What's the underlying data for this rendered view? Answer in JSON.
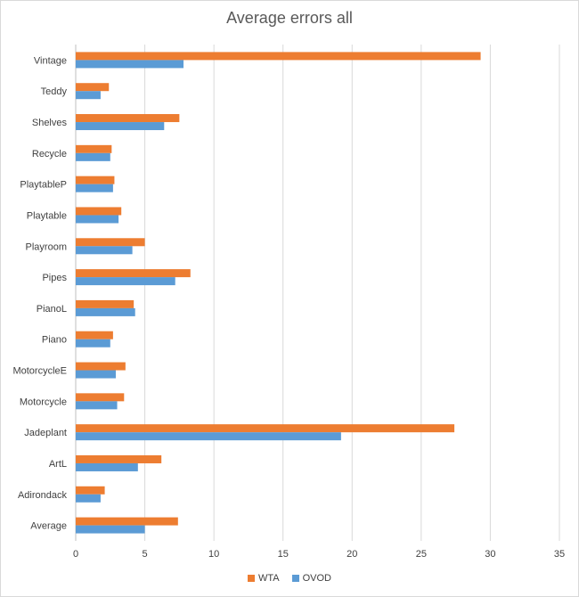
{
  "chart_data": {
    "type": "bar",
    "orientation": "horizontal",
    "title": "Average errors all",
    "categories": [
      "Vintage",
      "Teddy",
      "Shelves",
      "Recycle",
      "PlaytableP",
      "Playtable",
      "Playroom",
      "Pipes",
      "PianoL",
      "Piano",
      "MotorcycleE",
      "Motorcycle",
      "Jadeplant",
      "ArtL",
      "Adirondack",
      "Average"
    ],
    "series": [
      {
        "name": "WTA",
        "color": "#ed7d31",
        "values": [
          29.3,
          2.4,
          7.5,
          2.6,
          2.8,
          3.3,
          5.0,
          8.3,
          4.2,
          2.7,
          3.6,
          3.5,
          27.4,
          6.2,
          2.1,
          7.4
        ]
      },
      {
        "name": "OVOD",
        "color": "#5b9bd5",
        "values": [
          7.8,
          1.8,
          6.4,
          2.5,
          2.7,
          3.1,
          4.1,
          7.2,
          4.3,
          2.5,
          2.9,
          3.0,
          19.2,
          4.5,
          1.8,
          5.0
        ]
      }
    ],
    "xlim": [
      0,
      35
    ],
    "xticks": [
      "0",
      "5",
      "10",
      "15",
      "20",
      "25",
      "30",
      "35"
    ],
    "xtick_step": 5,
    "grid": "vertical",
    "legend_position": "bottom"
  }
}
